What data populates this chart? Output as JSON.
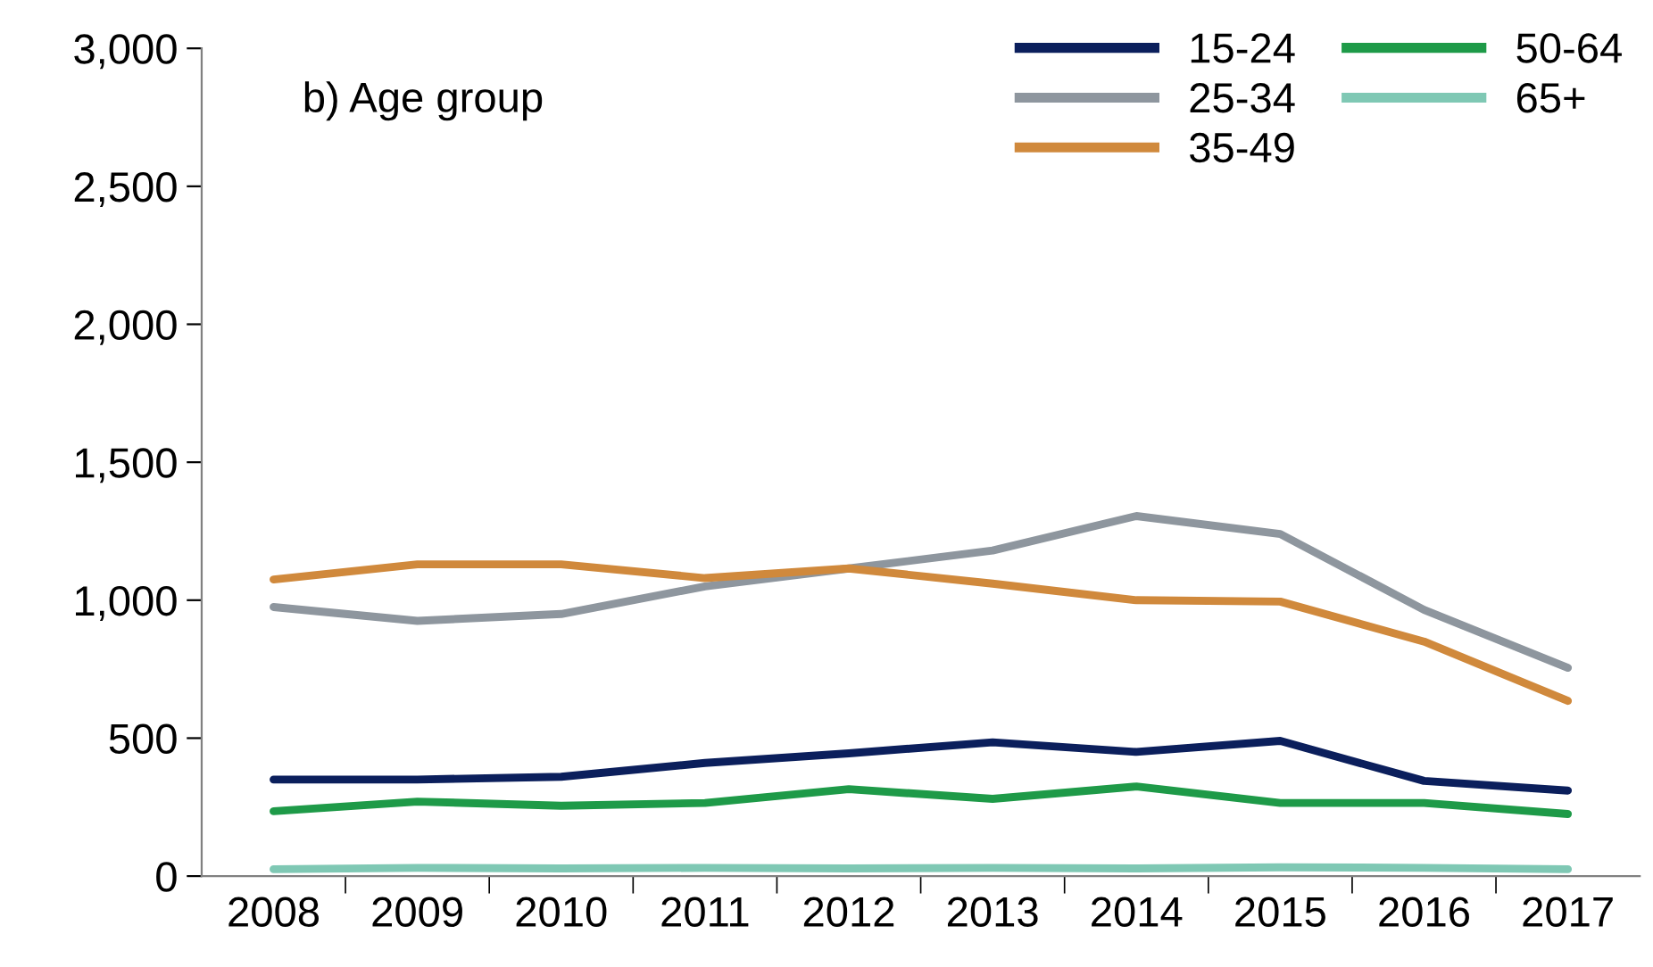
{
  "chart_data": {
    "type": "line",
    "title": "b) Age group",
    "categories": [
      "2008",
      "2009",
      "2010",
      "2011",
      "2012",
      "2013",
      "2014",
      "2015",
      "2016",
      "2017"
    ],
    "series": [
      {
        "name": "15-24",
        "color": "#0b1f5c",
        "values": [
          350,
          350,
          360,
          410,
          445,
          485,
          450,
          490,
          345,
          310
        ]
      },
      {
        "name": "25-34",
        "color": "#8e969e",
        "values": [
          975,
          925,
          950,
          1050,
          1115,
          1180,
          1305,
          1240,
          965,
          755
        ]
      },
      {
        "name": "35-49",
        "color": "#d0893c",
        "values": [
          1075,
          1130,
          1130,
          1080,
          1115,
          1060,
          1000,
          995,
          850,
          635
        ]
      },
      {
        "name": "50-64",
        "color": "#1e9a48",
        "values": [
          235,
          270,
          255,
          265,
          315,
          280,
          325,
          265,
          265,
          225
        ]
      },
      {
        "name": "65+",
        "color": "#7fc8b4",
        "values": [
          25,
          30,
          28,
          30,
          28,
          30,
          28,
          32,
          30,
          25
        ]
      }
    ],
    "ylim": [
      0,
      3000
    ],
    "yticks": [
      {
        "value": 0,
        "label": "0"
      },
      {
        "value": 500,
        "label": "500"
      },
      {
        "value": 1000,
        "label": "1,000"
      },
      {
        "value": 1500,
        "label": "1,500"
      },
      {
        "value": 2000,
        "label": "2,000"
      },
      {
        "value": 2500,
        "label": "2,500"
      },
      {
        "value": 3000,
        "label": "3,000"
      }
    ],
    "grid": false,
    "legend": "top right",
    "marker": "none",
    "line_style": "solid"
  }
}
